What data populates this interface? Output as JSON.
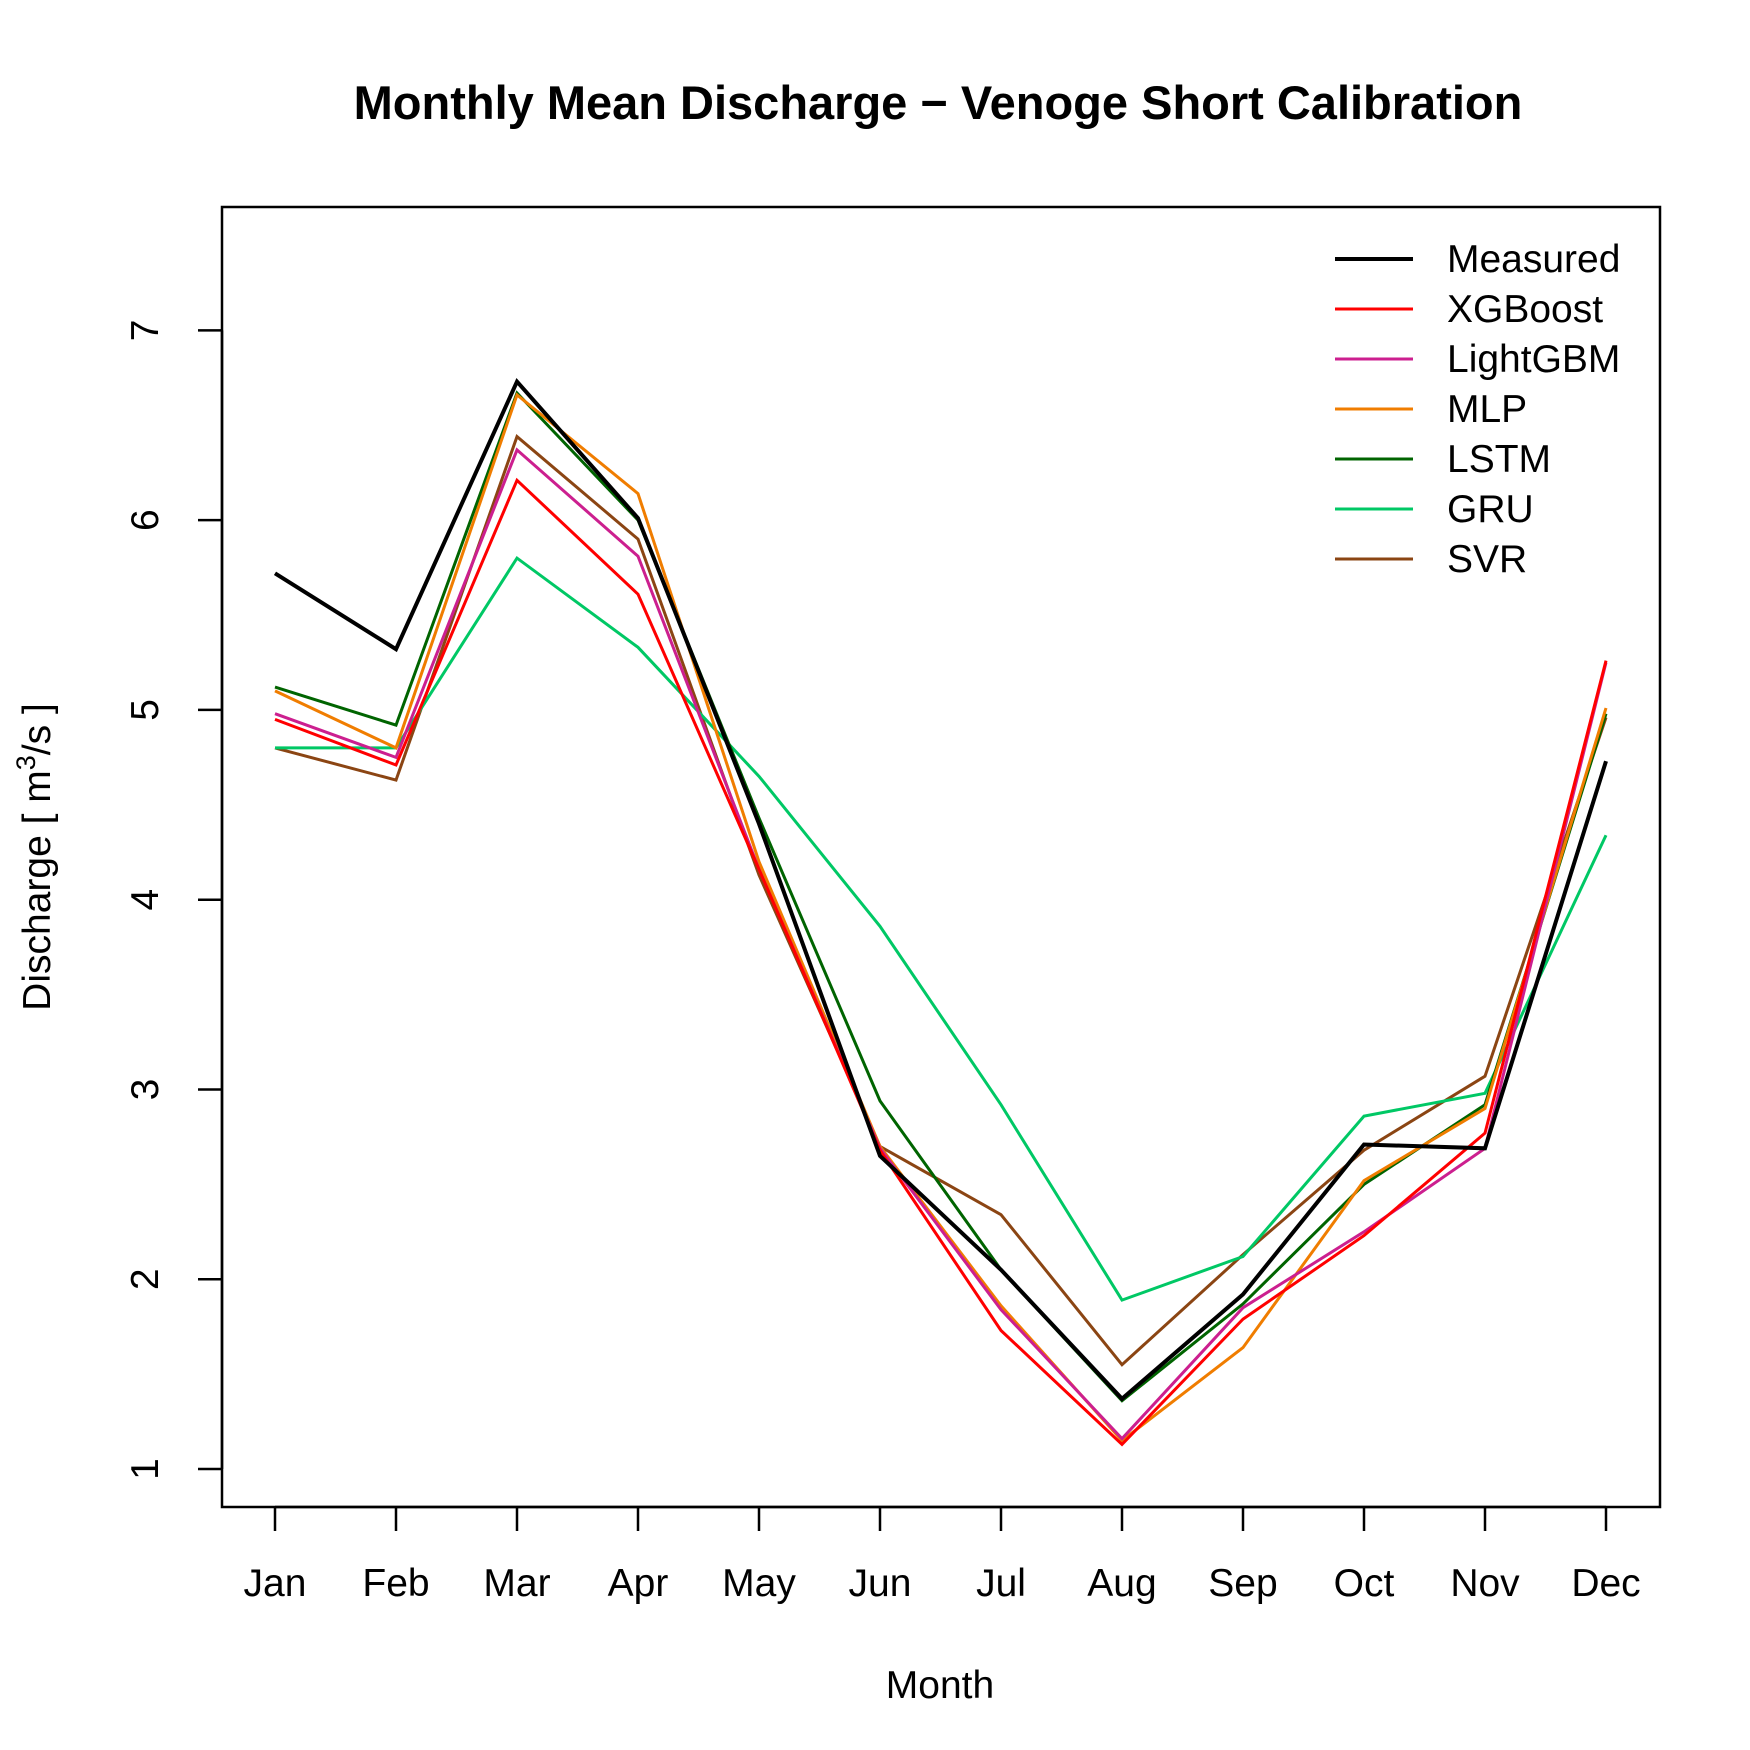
{
  "chart_data": {
    "type": "line",
    "title": "Monthly Mean Discharge − Venoge  Short Calibration",
    "xlabel": "Month",
    "ylabel_main": "Discharge [ m",
    "ylabel_sup": "3",
    "ylabel_end": "/s ]",
    "categories": [
      "Jan",
      "Feb",
      "Mar",
      "Apr",
      "May",
      "Jun",
      "Jul",
      "Aug",
      "Sep",
      "Oct",
      "Nov",
      "Dec"
    ],
    "yticks": [
      1,
      2,
      3,
      4,
      5,
      6,
      7
    ],
    "ylim": [
      0.8,
      7.65
    ],
    "legend_position": "top-right",
    "grid": false,
    "series": [
      {
        "name": "Measured",
        "color": "#000000",
        "width": 4,
        "values": [
          5.72,
          5.32,
          6.73,
          6.01,
          4.4,
          2.65,
          2.05,
          1.37,
          1.92,
          2.71,
          2.69,
          4.73
        ]
      },
      {
        "name": "XGBoost",
        "color": "#ff0000",
        "width": 3,
        "values": [
          4.95,
          4.71,
          6.21,
          5.61,
          4.16,
          2.68,
          1.73,
          1.13,
          1.79,
          2.23,
          2.77,
          5.26
        ]
      },
      {
        "name": "LightGBM",
        "color": "#cc1f8f",
        "width": 3,
        "values": [
          4.98,
          4.75,
          6.37,
          5.81,
          4.16,
          2.69,
          1.84,
          1.16,
          1.85,
          2.25,
          2.69,
          5.25
        ]
      },
      {
        "name": "MLP",
        "color": "#f07d00",
        "width": 3,
        "values": [
          5.1,
          4.8,
          6.66,
          6.14,
          4.2,
          2.7,
          1.86,
          1.15,
          1.64,
          2.52,
          2.9,
          5.01
        ]
      },
      {
        "name": "LSTM",
        "color": "#006400",
        "width": 3,
        "values": [
          5.12,
          4.92,
          6.67,
          6.0,
          4.43,
          2.94,
          2.05,
          1.36,
          1.87,
          2.5,
          2.92,
          4.98
        ]
      },
      {
        "name": "GRU",
        "color": "#00c865",
        "width": 3,
        "values": [
          4.8,
          4.8,
          5.8,
          5.33,
          4.65,
          3.86,
          2.92,
          1.89,
          2.12,
          2.86,
          2.98,
          4.34
        ]
      },
      {
        "name": "SVR",
        "color": "#8b4513",
        "width": 3,
        "values": [
          4.8,
          4.63,
          6.44,
          5.9,
          4.13,
          2.7,
          2.34,
          1.55,
          2.13,
          2.68,
          3.07,
          4.96
        ]
      }
    ]
  }
}
